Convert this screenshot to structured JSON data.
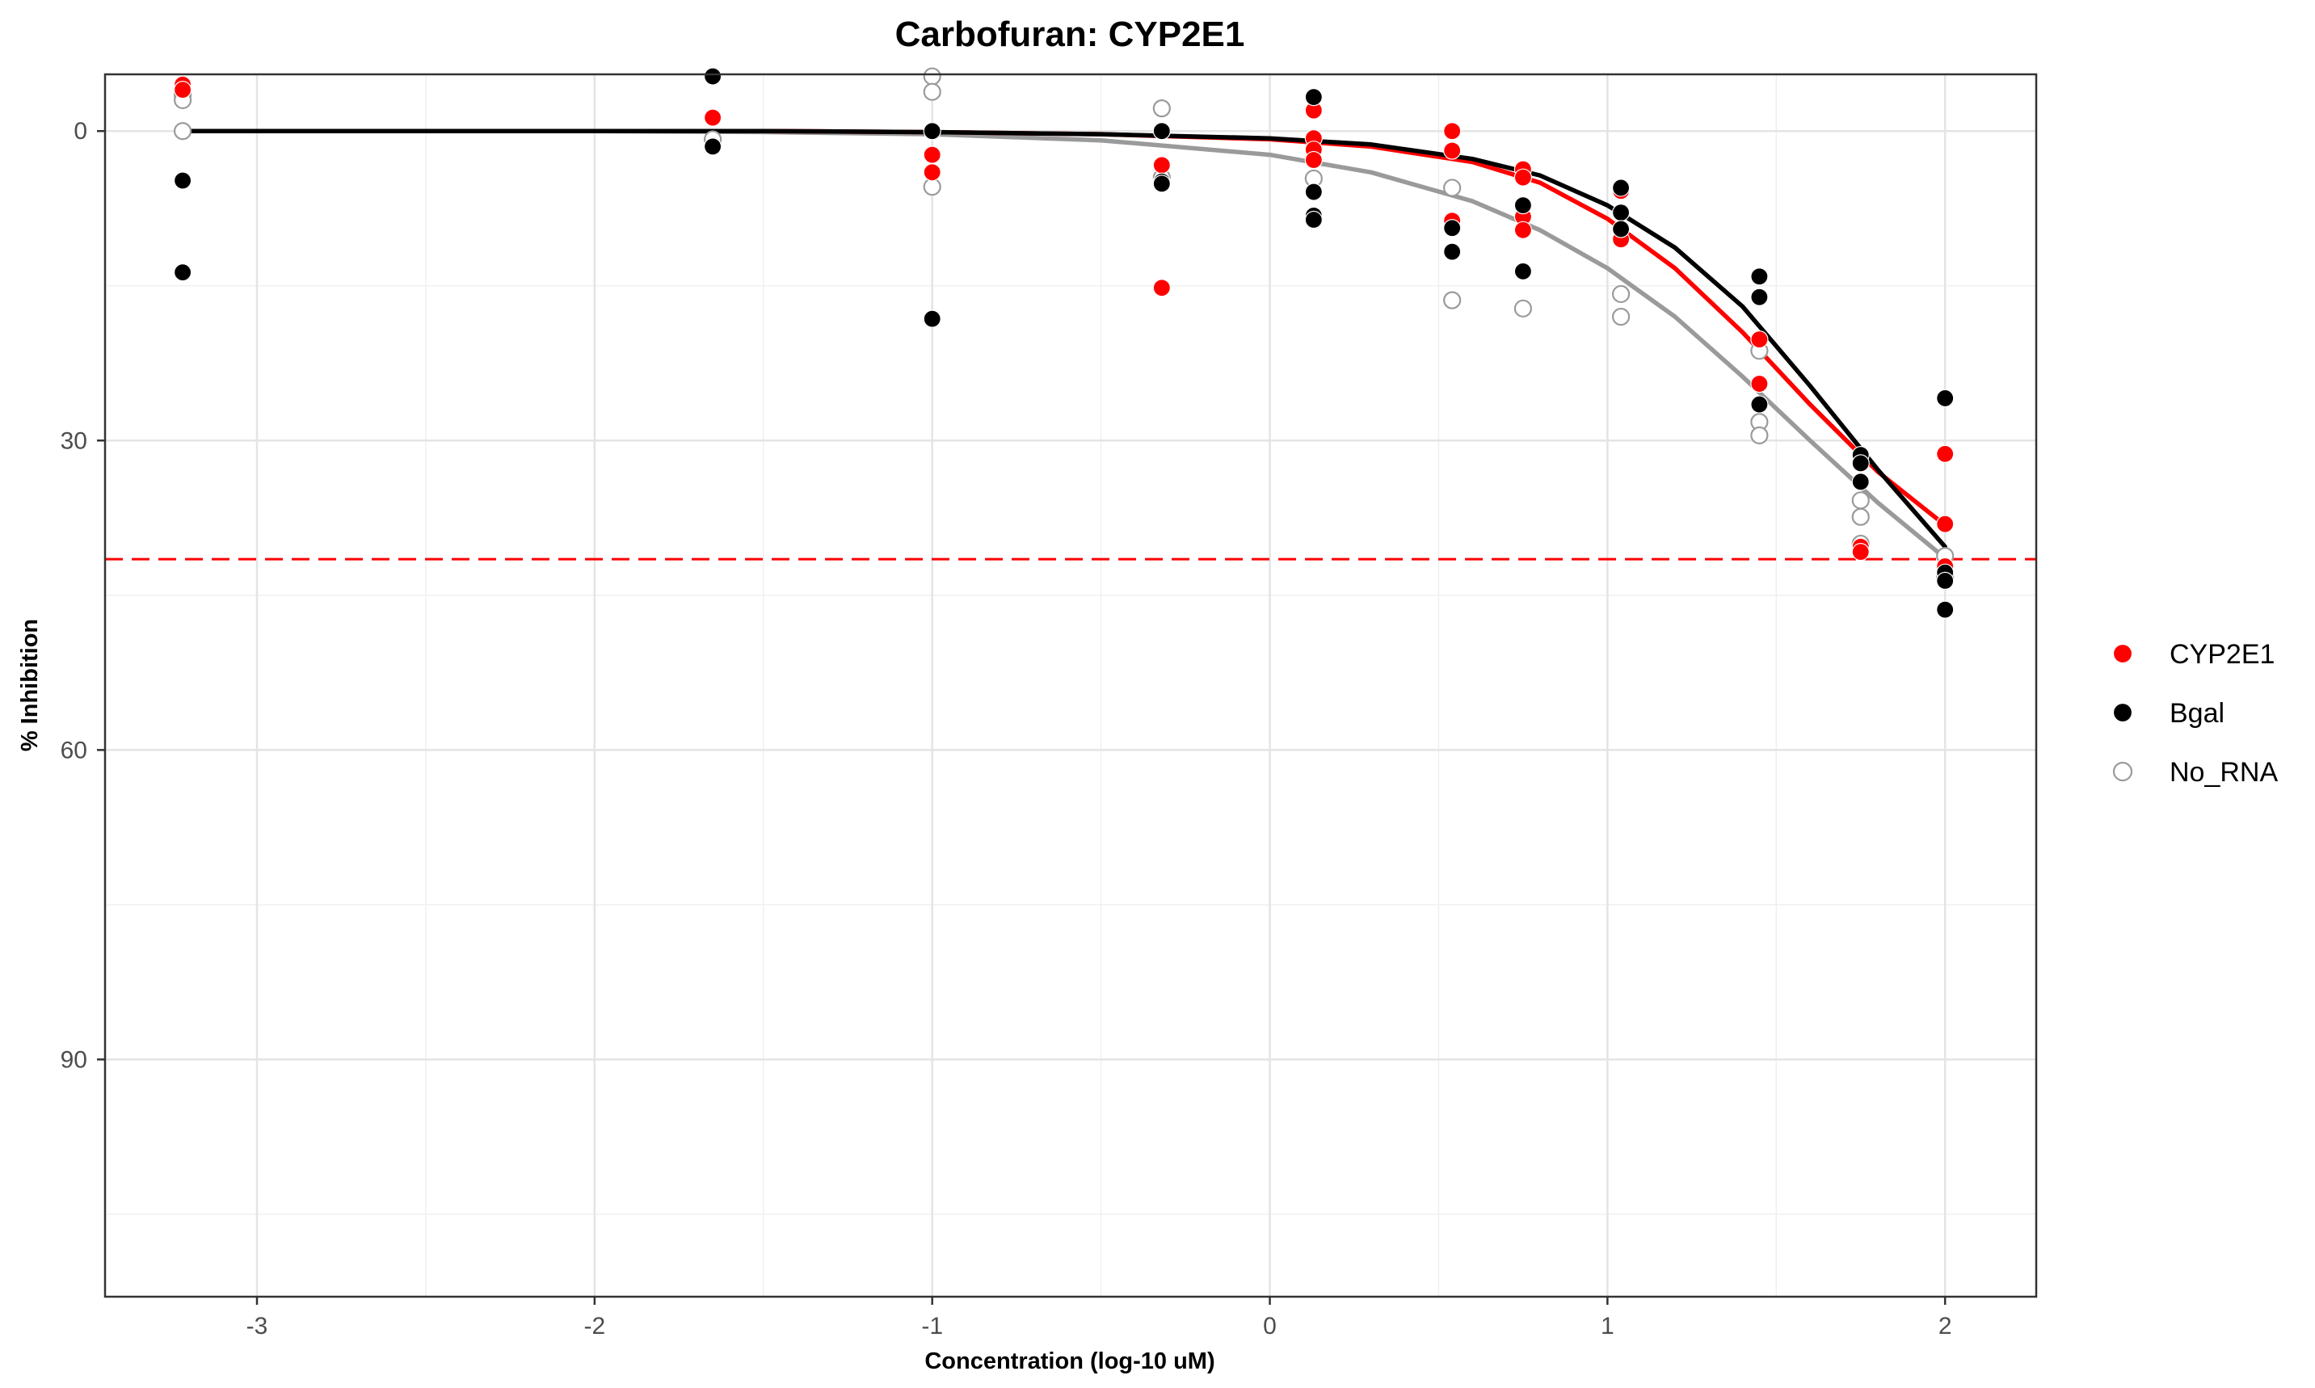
{
  "chart_data": {
    "type": "scatter",
    "title": "Carbofuran: CYP2E1",
    "xlabel": "Concentration (log-10 uM)",
    "ylabel": "% Inhibition",
    "xlim": [
      -3.45,
      2.27
    ],
    "ylim": [
      113,
      -5.5
    ],
    "y_reversed": true,
    "x_ticks": [
      -3,
      -2,
      -1,
      0,
      1,
      2
    ],
    "y_ticks": [
      0,
      30,
      60,
      90
    ],
    "grid": true,
    "legend_position": "right",
    "reference_line": {
      "y": 41.5,
      "style": "dashed",
      "color": "#ff0000"
    },
    "series": [
      {
        "name": "CYP2E1",
        "color": "#ff0000",
        "marker": "filled-circle",
        "points": [
          [
            -3.22,
            -4.5
          ],
          [
            -3.22,
            -4.0
          ],
          [
            -1.65,
            -5.3
          ],
          [
            -1.65,
            -1.3
          ],
          [
            -1.0,
            2.3
          ],
          [
            -1.0,
            4.0
          ],
          [
            -0.32,
            3.3
          ],
          [
            -0.32,
            15.2
          ],
          [
            0.13,
            -2.0
          ],
          [
            0.13,
            0.7
          ],
          [
            0.13,
            1.8
          ],
          [
            0.13,
            2.8
          ],
          [
            0.54,
            0.0
          ],
          [
            0.54,
            1.9
          ],
          [
            0.54,
            8.7
          ],
          [
            0.75,
            3.7
          ],
          [
            0.75,
            4.5
          ],
          [
            0.75,
            8.3
          ],
          [
            0.75,
            9.6
          ],
          [
            1.04,
            5.8
          ],
          [
            1.04,
            10.5
          ],
          [
            1.45,
            20.2
          ],
          [
            1.45,
            24.5
          ],
          [
            1.75,
            40.3
          ],
          [
            1.75,
            40.8
          ],
          [
            2.0,
            31.3
          ],
          [
            2.0,
            38.1
          ],
          [
            2.0,
            42.2
          ]
        ],
        "curve": [
          [
            -3.22,
            0.0
          ],
          [
            -2.5,
            0.0
          ],
          [
            -2.0,
            0.0
          ],
          [
            -1.5,
            0.0
          ],
          [
            -1.0,
            0.1
          ],
          [
            -0.5,
            0.3
          ],
          [
            0.0,
            0.8
          ],
          [
            0.3,
            1.5
          ],
          [
            0.6,
            3.0
          ],
          [
            0.8,
            5.0
          ],
          [
            1.0,
            8.5
          ],
          [
            1.2,
            13.3
          ],
          [
            1.4,
            19.5
          ],
          [
            1.6,
            26.5
          ],
          [
            1.8,
            33.0
          ],
          [
            2.0,
            38.2
          ]
        ]
      },
      {
        "name": "Bgal",
        "color": "#000000",
        "marker": "filled-circle",
        "points": [
          [
            -3.22,
            4.8
          ],
          [
            -3.22,
            13.7
          ],
          [
            -1.65,
            -5.3
          ],
          [
            -1.65,
            1.5
          ],
          [
            -1.0,
            0.0
          ],
          [
            -1.0,
            18.2
          ],
          [
            -0.32,
            0.0
          ],
          [
            -0.32,
            4.9
          ],
          [
            -0.32,
            5.1
          ],
          [
            0.13,
            -3.3
          ],
          [
            0.13,
            5.9
          ],
          [
            0.13,
            8.2
          ],
          [
            0.13,
            8.6
          ],
          [
            0.54,
            9.4
          ],
          [
            0.54,
            11.7
          ],
          [
            0.75,
            7.2
          ],
          [
            0.75,
            13.6
          ],
          [
            1.04,
            5.5
          ],
          [
            1.04,
            7.9
          ],
          [
            1.04,
            9.5
          ],
          [
            1.45,
            14.1
          ],
          [
            1.45,
            16.1
          ],
          [
            1.45,
            26.5
          ],
          [
            1.75,
            31.4
          ],
          [
            1.75,
            32.2
          ],
          [
            1.75,
            34.0
          ],
          [
            2.0,
            25.9
          ],
          [
            2.0,
            42.8
          ],
          [
            2.0,
            43.6
          ],
          [
            2.0,
            46.4
          ]
        ],
        "curve": [
          [
            -3.22,
            0.0
          ],
          [
            -2.5,
            0.0
          ],
          [
            -2.0,
            0.0
          ],
          [
            -1.5,
            0.0
          ],
          [
            -1.0,
            0.1
          ],
          [
            -0.5,
            0.3
          ],
          [
            0.0,
            0.7
          ],
          [
            0.3,
            1.3
          ],
          [
            0.6,
            2.7
          ],
          [
            0.8,
            4.3
          ],
          [
            1.0,
            7.2
          ],
          [
            1.2,
            11.3
          ],
          [
            1.4,
            17.0
          ],
          [
            1.6,
            24.7
          ],
          [
            1.8,
            32.8
          ],
          [
            2.0,
            40.3
          ]
        ]
      },
      {
        "name": "No_RNA",
        "color": "#9a9a9a",
        "marker": "open-circle",
        "points": [
          [
            -3.22,
            -3.5
          ],
          [
            -3.22,
            -3.0
          ],
          [
            -3.22,
            0.0
          ],
          [
            -1.65,
            -5.3
          ],
          [
            -1.65,
            0.8
          ],
          [
            -1.0,
            -5.3
          ],
          [
            -1.0,
            -3.8
          ],
          [
            -1.0,
            5.4
          ],
          [
            -0.32,
            -2.2
          ],
          [
            -0.32,
            4.5
          ],
          [
            0.13,
            4.6
          ],
          [
            0.13,
            8.6
          ],
          [
            0.54,
            5.5
          ],
          [
            0.54,
            16.4
          ],
          [
            0.75,
            17.2
          ],
          [
            1.04,
            15.8
          ],
          [
            1.04,
            18.0
          ],
          [
            1.45,
            21.3
          ],
          [
            1.45,
            28.2
          ],
          [
            1.45,
            29.5
          ],
          [
            1.75,
            35.8
          ],
          [
            1.75,
            37.4
          ],
          [
            1.75,
            40.0
          ],
          [
            2.0,
            41.2
          ],
          [
            2.0,
            43.2
          ]
        ],
        "curve": [
          [
            -3.22,
            0.0
          ],
          [
            -2.5,
            0.0
          ],
          [
            -2.0,
            0.0
          ],
          [
            -1.5,
            0.1
          ],
          [
            -1.0,
            0.3
          ],
          [
            -0.5,
            0.9
          ],
          [
            0.0,
            2.3
          ],
          [
            0.3,
            4.0
          ],
          [
            0.6,
            6.8
          ],
          [
            0.8,
            9.6
          ],
          [
            1.0,
            13.3
          ],
          [
            1.2,
            18.0
          ],
          [
            1.4,
            23.8
          ],
          [
            1.6,
            30.0
          ],
          [
            1.8,
            36.0
          ],
          [
            2.0,
            41.4
          ]
        ]
      }
    ]
  }
}
